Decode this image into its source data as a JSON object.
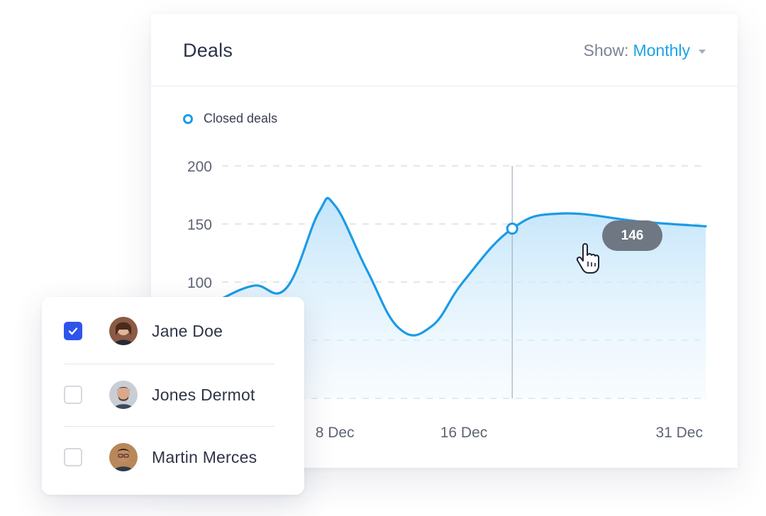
{
  "deals": {
    "title": "Deals",
    "show_label": "Show:",
    "show_value": "Monthly",
    "legend_label": "Closed deals",
    "tooltip_value": "146"
  },
  "chart_data": {
    "type": "area",
    "series": [
      {
        "name": "Closed deals",
        "color": "#1b9be6",
        "points": [
          {
            "x": "1 Dec",
            "y": 86
          },
          {
            "x": "3 Dec",
            "y": 97
          },
          {
            "x": "5 Dec",
            "y": 95
          },
          {
            "x": "7 Dec",
            "y": 160
          },
          {
            "x": "8 Dec",
            "y": 166
          },
          {
            "x": "10 Dec",
            "y": 110
          },
          {
            "x": "12 Dec",
            "y": 60
          },
          {
            "x": "14 Dec",
            "y": 62
          },
          {
            "x": "16 Dec",
            "y": 101
          },
          {
            "x": "19 Dec",
            "y": 146
          },
          {
            "x": "22 Dec",
            "y": 159
          },
          {
            "x": "27 Dec",
            "y": 152
          },
          {
            "x": "31 Dec",
            "y": 148
          }
        ]
      }
    ],
    "x_ticks": [
      "8 Dec",
      "16 Dec",
      "31 Dec"
    ],
    "y_ticks": [
      200,
      150,
      100
    ],
    "ylim": [
      0,
      200
    ],
    "highlight": {
      "x": "19 Dec",
      "y": 146
    },
    "grid": true,
    "legend_position": "top-left"
  },
  "users": [
    {
      "name": "Jane Doe",
      "checked": true,
      "avatar_bg": "#8a5a44"
    },
    {
      "name": "Jones Dermot",
      "checked": false,
      "avatar_bg": "#6b5a4e"
    },
    {
      "name": "Martin Merces",
      "checked": false,
      "avatar_bg": "#5a4636"
    }
  ]
}
